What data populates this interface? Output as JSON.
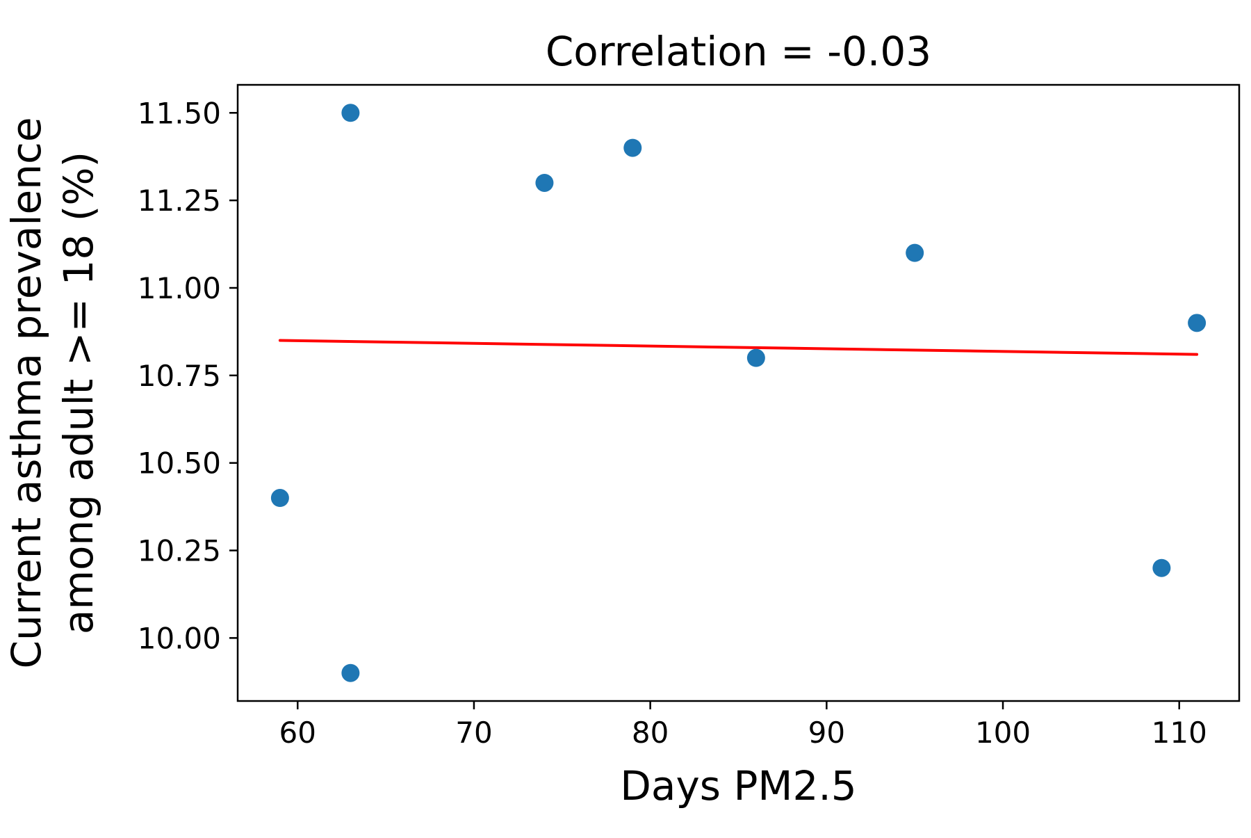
{
  "chart_data": {
    "type": "scatter",
    "title": "Correlation = -0.03",
    "xlabel": "Days PM2.5",
    "ylabel_lines": [
      "Current asthma prevalence",
      "among adult >= 18 (%)"
    ],
    "xlim": [
      56.6,
      113.4
    ],
    "ylim": [
      9.82,
      11.58
    ],
    "xticks": [
      60,
      70,
      80,
      90,
      100,
      110
    ],
    "xtick_labels": [
      "60",
      "70",
      "80",
      "90",
      "100",
      "110"
    ],
    "yticks": [
      10.0,
      10.25,
      10.5,
      10.75,
      11.0,
      11.25,
      11.5
    ],
    "ytick_labels": [
      "10.00",
      "10.25",
      "10.50",
      "10.75",
      "11.00",
      "11.25",
      "11.50"
    ],
    "points": [
      {
        "x": 59,
        "y": 10.4
      },
      {
        "x": 63,
        "y": 11.5
      },
      {
        "x": 63,
        "y": 9.9
      },
      {
        "x": 74,
        "y": 11.3
      },
      {
        "x": 79,
        "y": 11.4
      },
      {
        "x": 86,
        "y": 10.8
      },
      {
        "x": 95,
        "y": 11.1
      },
      {
        "x": 109,
        "y": 10.2
      },
      {
        "x": 111,
        "y": 10.9
      }
    ],
    "trend_line": {
      "x": [
        59,
        111
      ],
      "y": [
        10.85,
        10.81
      ]
    },
    "grid": false,
    "colors": {
      "points": "#1f77b4",
      "trend_line": "#ff0000",
      "axes": "#000000"
    }
  }
}
